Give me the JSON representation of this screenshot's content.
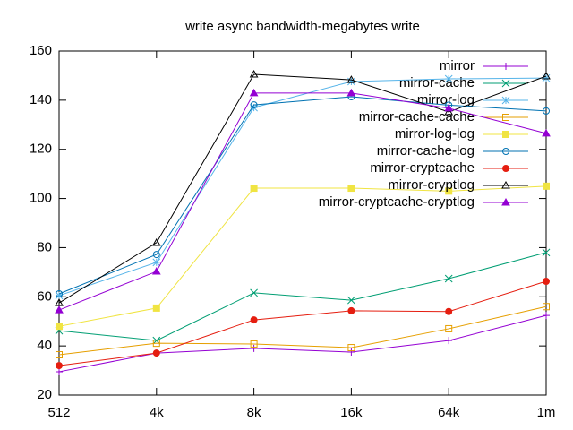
{
  "chart_data": {
    "type": "line",
    "title": "write async bandwidth-megabytes write",
    "categories": [
      "512",
      "4k",
      "8k",
      "16k",
      "64k",
      "1m"
    ],
    "ylim": [
      20,
      160
    ],
    "yticks": [
      20,
      40,
      60,
      80,
      100,
      120,
      140,
      160
    ],
    "legend": "top-right",
    "series": [
      {
        "name": "mirror",
        "color": "#9400d3",
        "marker": "plus",
        "values": [
          29.5,
          37.1,
          39,
          37.5,
          42.2,
          52.4
        ]
      },
      {
        "name": "mirror-cache",
        "color": "#009e73",
        "marker": "cross",
        "values": [
          46.2,
          42.2,
          61.6,
          58.6,
          67.4,
          78
        ]
      },
      {
        "name": "mirror-log",
        "color": "#56b4e9",
        "marker": "star",
        "values": [
          60.5,
          74,
          137,
          147.6,
          148.7,
          149
        ]
      },
      {
        "name": "mirror-cache-cache",
        "color": "#e69f00",
        "marker": "square-open",
        "values": [
          36.4,
          41.1,
          40.8,
          39.3,
          47,
          56
        ]
      },
      {
        "name": "mirror-log-log",
        "color": "#f0e442",
        "marker": "square",
        "values": [
          48,
          55.4,
          104.2,
          104.2,
          103,
          105
        ]
      },
      {
        "name": "mirror-cache-log",
        "color": "#0072b2",
        "marker": "circle-open",
        "values": [
          61.2,
          77.2,
          138.1,
          141.4,
          138,
          135.6
        ]
      },
      {
        "name": "mirror-cryptcache",
        "color": "#e51e10",
        "marker": "circle",
        "values": [
          32,
          37.1,
          50.6,
          54.3,
          54,
          66.3
        ]
      },
      {
        "name": "mirror-cryptlog",
        "color": "#000000",
        "marker": "triangle-open",
        "values": [
          57.5,
          82,
          150.5,
          148.3,
          135.2,
          149.8
        ]
      },
      {
        "name": "mirror-cryptcache-cryptlog",
        "color": "#9400d3",
        "marker": "triangle",
        "values": [
          54.6,
          70.3,
          142.9,
          142.9,
          136.7,
          126.5
        ]
      }
    ]
  }
}
